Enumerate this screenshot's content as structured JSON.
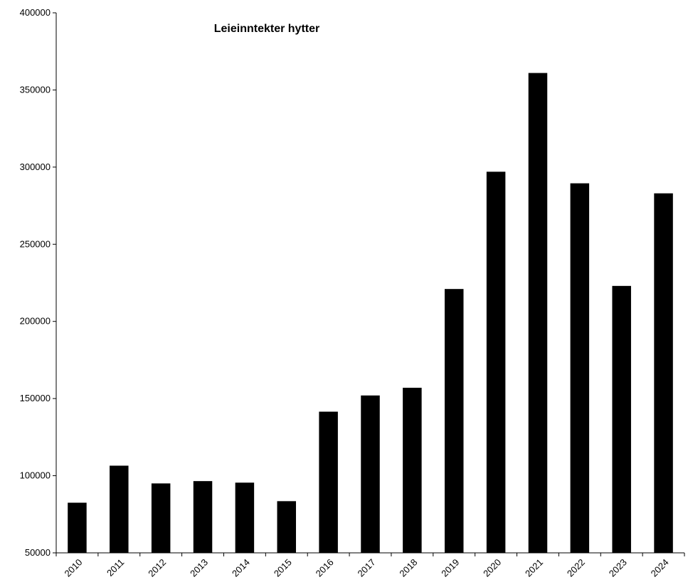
{
  "chart_data": {
    "type": "bar",
    "title": "Leieinntekter hytter",
    "xlabel": "",
    "ylabel": "",
    "categories": [
      "2010",
      "2011",
      "2012",
      "2013",
      "2014",
      "2015",
      "2016",
      "2017",
      "2018",
      "2019",
      "2020",
      "2021",
      "2022",
      "2023",
      "2024"
    ],
    "series": [
      {
        "values": [
          82500,
          106500,
          95000,
          96500,
          95500,
          83500,
          141500,
          152000,
          157000,
          221000,
          297000,
          361000,
          289500,
          223000,
          283000
        ]
      }
    ],
    "ylim": [
      50000,
      400000
    ],
    "yticks": [
      "50000",
      "100000",
      "150000",
      "200000",
      "250000",
      "300000",
      "350000",
      "400000"
    ],
    "ytick_values": [
      50000,
      100000,
      150000,
      200000,
      250000,
      300000,
      350000,
      400000
    ],
    "grid": false,
    "legend": "none",
    "colors": {
      "bar": "#000000",
      "axis": "#000000",
      "background": "#ffffff"
    }
  }
}
